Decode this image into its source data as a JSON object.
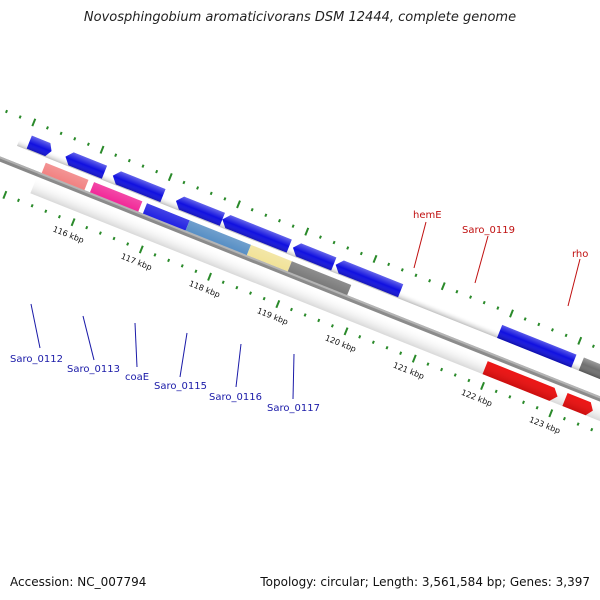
{
  "title": "Novosphingobium aromaticivorans DSM 12444, complete genome",
  "footer": {
    "accession": "Accession: NC_007794",
    "summary": "Topology: circular; Length: 3,561,584 bp; Genes: 3,397"
  },
  "ruler_labels": [
    "116 kbp",
    "117 kbp",
    "118 kbp",
    "119 kbp",
    "120 kbp",
    "121 kbp",
    "122 kbp",
    "123 kbp"
  ],
  "gene_labels": [
    {
      "text": "Saro_0112",
      "color": "#1a1aa8"
    },
    {
      "text": "Saro_0113",
      "color": "#1a1aa8"
    },
    {
      "text": "coaE",
      "color": "#1a1aa8"
    },
    {
      "text": "Saro_0115",
      "color": "#1a1aa8"
    },
    {
      "text": "Saro_0116",
      "color": "#1a1aa8"
    },
    {
      "text": "Saro_0117",
      "color": "#1a1aa8"
    },
    {
      "text": "hemE",
      "color": "#c01010"
    },
    {
      "text": "Saro_0119",
      "color": "#c01010"
    },
    {
      "text": "rho",
      "color": "#c01010"
    }
  ],
  "colors": {
    "cds_blue": "#1010e0",
    "cds_red": "#ee1010",
    "backbone": "#888888",
    "tick_green": "#2a8a2a",
    "orange": "#ff9010",
    "pink": "#f01890",
    "salmon": "#f07878",
    "steelblue": "#4a86c0",
    "khaki": "#f0e090",
    "gray": "#707070"
  }
}
